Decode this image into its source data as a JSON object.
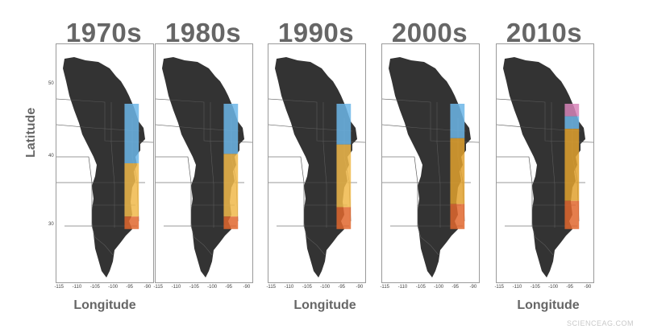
{
  "figure": {
    "ylabel": "Latitude",
    "xlabel": "Longitude",
    "lat_ticks": [
      "50",
      "40",
      "30"
    ],
    "lon_ticks": [
      "-115",
      "-110",
      "-105",
      "-100",
      "-95",
      "-90"
    ],
    "watermark": "SCIENCEAG.COM"
  },
  "colors": {
    "range": "#333333",
    "state_lines": "#d0d0d0",
    "blue": "#6cb6e8",
    "orange": "#e0a12e",
    "light_orange": "#f0b84a",
    "red_orange": "#e0672e",
    "pink": "#d784b8"
  },
  "panels": [
    {
      "decade": "1970s",
      "bands": [
        {
          "lat_top": 48.5,
          "lat_bottom": 39.0,
          "color": "blue"
        },
        {
          "lat_top": 39.0,
          "lat_bottom": 30.5,
          "color": "light_orange"
        },
        {
          "lat_top": 30.5,
          "lat_bottom": 28.5,
          "color": "red_orange"
        }
      ]
    },
    {
      "decade": "1980s",
      "bands": [
        {
          "lat_top": 48.5,
          "lat_bottom": 40.5,
          "color": "blue"
        },
        {
          "lat_top": 40.5,
          "lat_bottom": 30.5,
          "color": "light_orange"
        },
        {
          "lat_top": 30.5,
          "lat_bottom": 28.5,
          "color": "red_orange"
        }
      ]
    },
    {
      "decade": "1990s",
      "bands": [
        {
          "lat_top": 48.5,
          "lat_bottom": 42.0,
          "color": "blue"
        },
        {
          "lat_top": 42.0,
          "lat_bottom": 32.0,
          "color": "light_orange"
        },
        {
          "lat_top": 32.0,
          "lat_bottom": 28.5,
          "color": "red_orange"
        }
      ]
    },
    {
      "decade": "2000s",
      "bands": [
        {
          "lat_top": 48.5,
          "lat_bottom": 43.0,
          "color": "blue"
        },
        {
          "lat_top": 43.0,
          "lat_bottom": 32.5,
          "color": "orange"
        },
        {
          "lat_top": 32.5,
          "lat_bottom": 28.5,
          "color": "red_orange"
        }
      ]
    },
    {
      "decade": "2010s",
      "bands": [
        {
          "lat_top": 48.5,
          "lat_bottom": 46.5,
          "color": "pink"
        },
        {
          "lat_top": 46.5,
          "lat_bottom": 44.5,
          "color": "blue"
        },
        {
          "lat_top": 44.5,
          "lat_bottom": 33.0,
          "color": "orange"
        },
        {
          "lat_top": 33.0,
          "lat_bottom": 28.5,
          "color": "red_orange"
        }
      ]
    }
  ],
  "band_lon": [
    -97,
    -93
  ]
}
